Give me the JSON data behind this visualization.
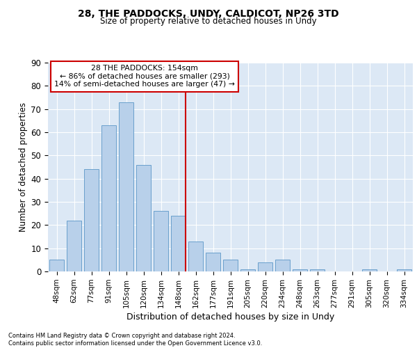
{
  "title1": "28, THE PADDOCKS, UNDY, CALDICOT, NP26 3TD",
  "title2": "Size of property relative to detached houses in Undy",
  "xlabel": "Distribution of detached houses by size in Undy",
  "ylabel": "Number of detached properties",
  "categories": [
    "48sqm",
    "62sqm",
    "77sqm",
    "91sqm",
    "105sqm",
    "120sqm",
    "134sqm",
    "148sqm",
    "162sqm",
    "177sqm",
    "191sqm",
    "205sqm",
    "220sqm",
    "234sqm",
    "248sqm",
    "263sqm",
    "277sqm",
    "291sqm",
    "305sqm",
    "320sqm",
    "334sqm"
  ],
  "values": [
    5,
    22,
    44,
    63,
    73,
    46,
    26,
    24,
    13,
    8,
    5,
    1,
    4,
    5,
    1,
    1,
    0,
    0,
    1,
    0,
    1
  ],
  "bar_color": "#b8d0ea",
  "bar_edge_color": "#6aa0cc",
  "vline_color": "#cc0000",
  "annotation_title": "28 THE PADDOCKS: 154sqm",
  "annotation_line1": "← 86% of detached houses are smaller (293)",
  "annotation_line2": "14% of semi-detached houses are larger (47) →",
  "annotation_box_color": "#cc0000",
  "annotation_fill": "#ffffff",
  "ylim": [
    0,
    90
  ],
  "yticks": [
    0,
    10,
    20,
    30,
    40,
    50,
    60,
    70,
    80,
    90
  ],
  "footer1": "Contains HM Land Registry data © Crown copyright and database right 2024.",
  "footer2": "Contains public sector information licensed under the Open Government Licence v3.0.",
  "bg_color": "#dce8f5",
  "grid_color": "#ffffff"
}
